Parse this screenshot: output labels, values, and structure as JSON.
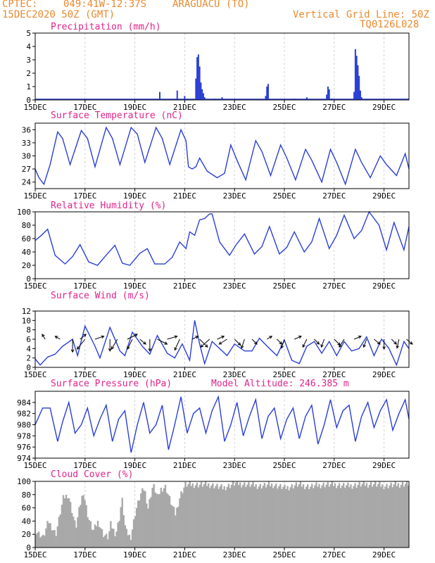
{
  "header": {
    "source": "CPTEC:",
    "coords": "049:41W-12:37S",
    "station": "ARAGUACU (TO)",
    "run": "15DEC2020 50Z (GMT)",
    "vgrid": "Vertical Grid Line: 50Z",
    "code": "TQ0126L028",
    "altitude": "Model Altitude: 246.385 m"
  },
  "colors": {
    "header": "#e98a2f",
    "title": "#e0248a",
    "line": "#2b3fd6",
    "cloud": "#a8a8a8",
    "bar": "#2b3fd6"
  },
  "x_ticks": [
    "15DEC",
    "17DEC",
    "19DEC",
    "21DEC",
    "23DEC",
    "25DEC",
    "27DEC",
    "29DEC"
  ],
  "chart_data": [
    {
      "type": "bar",
      "title": "Precipitation (mm/h)",
      "ylim": [
        0,
        5
      ],
      "yticks": [
        "0",
        "1",
        "2",
        "3",
        "4",
        "5"
      ],
      "x_unit": "day offset from 15DEC",
      "x": [
        5.0,
        5.7,
        6.0,
        6.45,
        6.5,
        6.55,
        6.6,
        6.65,
        6.7,
        6.75,
        6.8,
        7.2,
        7.5,
        9.25,
        9.3,
        9.35,
        10.4,
        10.9,
        11.7,
        11.75,
        11.8,
        11.9,
        12.8,
        12.85,
        12.9,
        12.95,
        13.0,
        13.05,
        13.1
      ],
      "values": [
        0.6,
        0.7,
        0.3,
        1.6,
        3.2,
        3.4,
        2.5,
        1.3,
        0.8,
        0.5,
        0.2,
        0.1,
        0.2,
        0.3,
        1.0,
        1.2,
        0.1,
        0.2,
        0.4,
        1.0,
        0.8,
        0.1,
        0.6,
        3.8,
        3.3,
        2.6,
        1.8,
        0.7,
        0.2
      ]
    },
    {
      "type": "line",
      "title": "Surface Temperature (nC)",
      "ylim": [
        22.5,
        37.5
      ],
      "yticks": [
        "24",
        "27",
        "30",
        "33",
        "36"
      ],
      "x": [
        0,
        0.15,
        0.35,
        0.6,
        0.9,
        1.1,
        1.4,
        1.85,
        2.1,
        2.4,
        2.85,
        3.1,
        3.4,
        3.85,
        4.1,
        4.4,
        4.85,
        5.1,
        5.4,
        5.85,
        6.05,
        6.15,
        6.3,
        6.45,
        6.6,
        6.9,
        7.3,
        7.6,
        7.85,
        8.1,
        8.45,
        8.85,
        9.1,
        9.45,
        9.85,
        10.1,
        10.45,
        10.85,
        11.1,
        11.5,
        11.85,
        12.1,
        12.45,
        12.85,
        13.1,
        13.45,
        13.85,
        14.1,
        14.5,
        14.85,
        15.0
      ],
      "values": [
        27,
        25,
        23.5,
        28,
        35.5,
        34,
        28,
        35.8,
        34,
        27.5,
        36.5,
        34,
        28,
        36.5,
        35,
        28.5,
        36.5,
        34,
        28,
        36,
        33.5,
        27.5,
        27,
        27.5,
        29.5,
        26.5,
        25,
        26,
        32.5,
        29,
        24.5,
        33.5,
        31,
        25.5,
        32.5,
        29.5,
        24.5,
        31.5,
        29,
        24,
        31.5,
        28.5,
        23.5,
        31.5,
        28.5,
        25,
        30,
        28,
        25.5,
        30.5,
        27
      ]
    },
    {
      "type": "line",
      "title": "Relative Humidity (%)",
      "ylim": [
        0,
        100
      ],
      "yticks": [
        "0",
        "20",
        "40",
        "60",
        "80",
        "100"
      ],
      "x": [
        0,
        0.25,
        0.5,
        0.8,
        1.2,
        1.5,
        1.8,
        2.15,
        2.5,
        2.8,
        3.2,
        3.5,
        3.8,
        4.2,
        4.5,
        4.8,
        5.2,
        5.5,
        5.8,
        6.05,
        6.2,
        6.4,
        6.6,
        6.8,
        7.0,
        7.1,
        7.4,
        7.8,
        8.05,
        8.4,
        8.8,
        9.1,
        9.4,
        9.8,
        10.1,
        10.4,
        10.8,
        11.1,
        11.4,
        11.8,
        12.1,
        12.4,
        12.8,
        13.1,
        13.4,
        13.8,
        14.1,
        14.4,
        14.8,
        15.0
      ],
      "values": [
        57,
        65,
        74,
        35,
        22,
        33,
        51,
        25,
        20,
        33,
        50,
        23,
        20,
        38,
        45,
        22,
        22,
        32,
        55,
        45,
        70,
        65,
        88,
        90,
        97,
        97,
        55,
        35,
        50,
        67,
        37,
        48,
        78,
        37,
        47,
        70,
        40,
        55,
        90,
        45,
        65,
        95,
        60,
        72,
        100,
        80,
        43,
        84,
        43,
        78
      ]
    },
    {
      "type": "line",
      "title": "Surface Wind (m/s)",
      "ylim": [
        0,
        12
      ],
      "yticks": [
        "0",
        "2",
        "4",
        "6",
        "8",
        "10",
        "12"
      ],
      "x": [
        0,
        0.2,
        0.5,
        0.8,
        1.1,
        1.5,
        1.7,
        2.0,
        2.4,
        2.6,
        3.0,
        3.4,
        3.6,
        3.9,
        4.3,
        4.6,
        4.9,
        5.3,
        5.6,
        5.9,
        6.2,
        6.4,
        6.6,
        6.8,
        7.1,
        7.4,
        7.7,
        8.0,
        8.4,
        8.7,
        9.0,
        9.4,
        9.7,
        10.0,
        10.3,
        10.6,
        10.9,
        11.2,
        11.5,
        11.8,
        12.1,
        12.4,
        12.7,
        13.0,
        13.3,
        13.6,
        13.9,
        14.2,
        14.5,
        14.8,
        15.0
      ],
      "values": [
        1.8,
        0.5,
        2.2,
        2.8,
        4.5,
        6.0,
        2.5,
        8.8,
        4.5,
        2.0,
        8.5,
        3.5,
        2.5,
        7.5,
        4.5,
        2.8,
        6.8,
        3.0,
        2.0,
        5.0,
        1.5,
        10.0,
        5.0,
        0.8,
        5.5,
        4.0,
        2.5,
        5.0,
        3.5,
        3.5,
        6.2,
        4.0,
        2.5,
        5.8,
        1.5,
        0.8,
        4.5,
        5.5,
        3.0,
        5.5,
        2.5,
        5.5,
        3.5,
        4.0,
        6.5,
        2.5,
        6.0,
        4.0,
        0.5,
        5.5,
        4.0
      ]
    },
    {
      "type": "line",
      "title": "Surface Pressure (hPa)",
      "ylim": [
        974,
        986
      ],
      "yticks": [
        "974",
        "976",
        "978",
        "980",
        "982",
        "984"
      ],
      "x": [
        0,
        0.3,
        0.6,
        0.9,
        1.1,
        1.35,
        1.6,
        1.85,
        2.1,
        2.35,
        2.6,
        2.85,
        3.1,
        3.35,
        3.6,
        3.85,
        4.1,
        4.35,
        4.6,
        4.85,
        5.1,
        5.35,
        5.6,
        5.85,
        6.1,
        6.35,
        6.6,
        6.85,
        7.1,
        7.35,
        7.6,
        7.85,
        8.1,
        8.35,
        8.6,
        8.85,
        9.1,
        9.35,
        9.6,
        9.85,
        10.1,
        10.35,
        10.6,
        10.85,
        11.1,
        11.35,
        11.6,
        11.85,
        12.1,
        12.35,
        12.6,
        12.85,
        13.1,
        13.35,
        13.6,
        13.85,
        14.1,
        14.35,
        14.6,
        14.85,
        15.0
      ],
      "values": [
        980,
        983,
        983,
        977,
        980.5,
        984,
        978.5,
        980,
        983,
        978,
        981,
        983.5,
        977,
        981,
        982.5,
        975,
        980,
        984,
        978.5,
        980,
        983.5,
        975.5,
        980,
        985,
        978.5,
        982,
        983,
        978.5,
        982.5,
        985,
        977,
        980,
        984,
        978,
        981.5,
        984.5,
        977.5,
        981.5,
        983,
        977.5,
        981,
        983,
        977.5,
        981.5,
        983.5,
        976.5,
        980,
        984.5,
        979.5,
        982.5,
        983.5,
        977,
        981.5,
        984,
        979.5,
        982.5,
        984.5,
        979,
        982,
        984.5,
        981
      ]
    },
    {
      "type": "area",
      "title": "Cloud Cover (%)",
      "ylim": [
        0,
        100
      ],
      "yticks": [
        "0",
        "20",
        "40",
        "60",
        "80",
        "100"
      ],
      "x": [
        0,
        0.3,
        0.5,
        0.8,
        1.1,
        1.3,
        1.45,
        1.6,
        1.75,
        1.9,
        2.1,
        2.3,
        2.5,
        2.7,
        2.9,
        3.0,
        3.2,
        3.35,
        3.45,
        3.6,
        3.8,
        4.0,
        4.2,
        4.35,
        4.5,
        4.7,
        4.9,
        5.0,
        5.2,
        5.4,
        5.6,
        5.8,
        6.0,
        6.5,
        7.0,
        7.5,
        8.0,
        8.5,
        9.0,
        9.5,
        10.0,
        10.5,
        11.0,
        11.5,
        12.0,
        12.5,
        13.0,
        13.5,
        14.0,
        14.5,
        15.0
      ],
      "values": [
        25,
        15,
        40,
        20,
        75,
        80,
        55,
        30,
        60,
        85,
        45,
        25,
        40,
        20,
        15,
        35,
        20,
        45,
        75,
        25,
        15,
        55,
        80,
        90,
        60,
        95,
        75,
        88,
        92,
        70,
        50,
        80,
        95,
        95,
        95,
        90,
        97,
        95,
        93,
        95,
        90,
        95,
        92,
        95,
        95,
        93,
        95,
        96,
        93,
        95,
        97
      ]
    }
  ],
  "wind_arrows": [
    {
      "x": 0.4,
      "dx": -3,
      "dy": -5
    },
    {
      "x": 1.0,
      "dx": -5,
      "dy": -3
    },
    {
      "x": 1.5,
      "dx": 0,
      "dy": 13
    },
    {
      "x": 1.8,
      "dx": 6,
      "dy": -5
    },
    {
      "x": 2.0,
      "dx": -8,
      "dy": 10
    },
    {
      "x": 2.4,
      "dx": 9,
      "dy": -3
    },
    {
      "x": 3.0,
      "dx": 0,
      "dy": 12
    },
    {
      "x": 3.3,
      "dx": -6,
      "dy": 10
    },
    {
      "x": 3.7,
      "dx": 10,
      "dy": -5
    },
    {
      "x": 3.9,
      "dx": -5,
      "dy": 10
    },
    {
      "x": 4.2,
      "dx": 6,
      "dy": 5
    },
    {
      "x": 4.6,
      "dx": 0,
      "dy": 12
    },
    {
      "x": 4.9,
      "dx": 10,
      "dy": 5
    },
    {
      "x": 5.3,
      "dx": 10,
      "dy": -3
    },
    {
      "x": 5.8,
      "dx": -5,
      "dy": 11
    },
    {
      "x": 6.3,
      "dx": 6,
      "dy": -3
    },
    {
      "x": 6.6,
      "dx": 8,
      "dy": 8
    },
    {
      "x": 7.0,
      "dx": -9,
      "dy": 8
    },
    {
      "x": 7.3,
      "dx": 7,
      "dy": -3
    },
    {
      "x": 7.7,
      "dx": -8,
      "dy": 5
    },
    {
      "x": 8.0,
      "dx": 6,
      "dy": 6
    },
    {
      "x": 8.4,
      "dx": -3,
      "dy": 9
    },
    {
      "x": 8.7,
      "dx": 5,
      "dy": 5
    },
    {
      "x": 9.3,
      "dx": 5,
      "dy": -3
    },
    {
      "x": 9.7,
      "dx": 5,
      "dy": 5
    },
    {
      "x": 10.0,
      "dx": -3,
      "dy": 9
    },
    {
      "x": 10.4,
      "dx": 7,
      "dy": -3
    },
    {
      "x": 10.9,
      "dx": -4,
      "dy": 8
    },
    {
      "x": 11.2,
      "dx": 5,
      "dy": 5
    },
    {
      "x": 11.6,
      "dx": -3,
      "dy": 8
    },
    {
      "x": 12.0,
      "dx": 6,
      "dy": 6
    },
    {
      "x": 12.4,
      "dx": -5,
      "dy": 8
    },
    {
      "x": 12.8,
      "dx": 7,
      "dy": -3
    },
    {
      "x": 13.3,
      "dx": -3,
      "dy": 8
    },
    {
      "x": 13.6,
      "dx": 6,
      "dy": 5
    },
    {
      "x": 14.0,
      "dx": 0,
      "dy": 10
    },
    {
      "x": 14.3,
      "dx": 5,
      "dy": 5
    },
    {
      "x": 14.6,
      "dx": -2,
      "dy": 9
    },
    {
      "x": 14.9,
      "dx": 6,
      "dy": 5
    }
  ]
}
